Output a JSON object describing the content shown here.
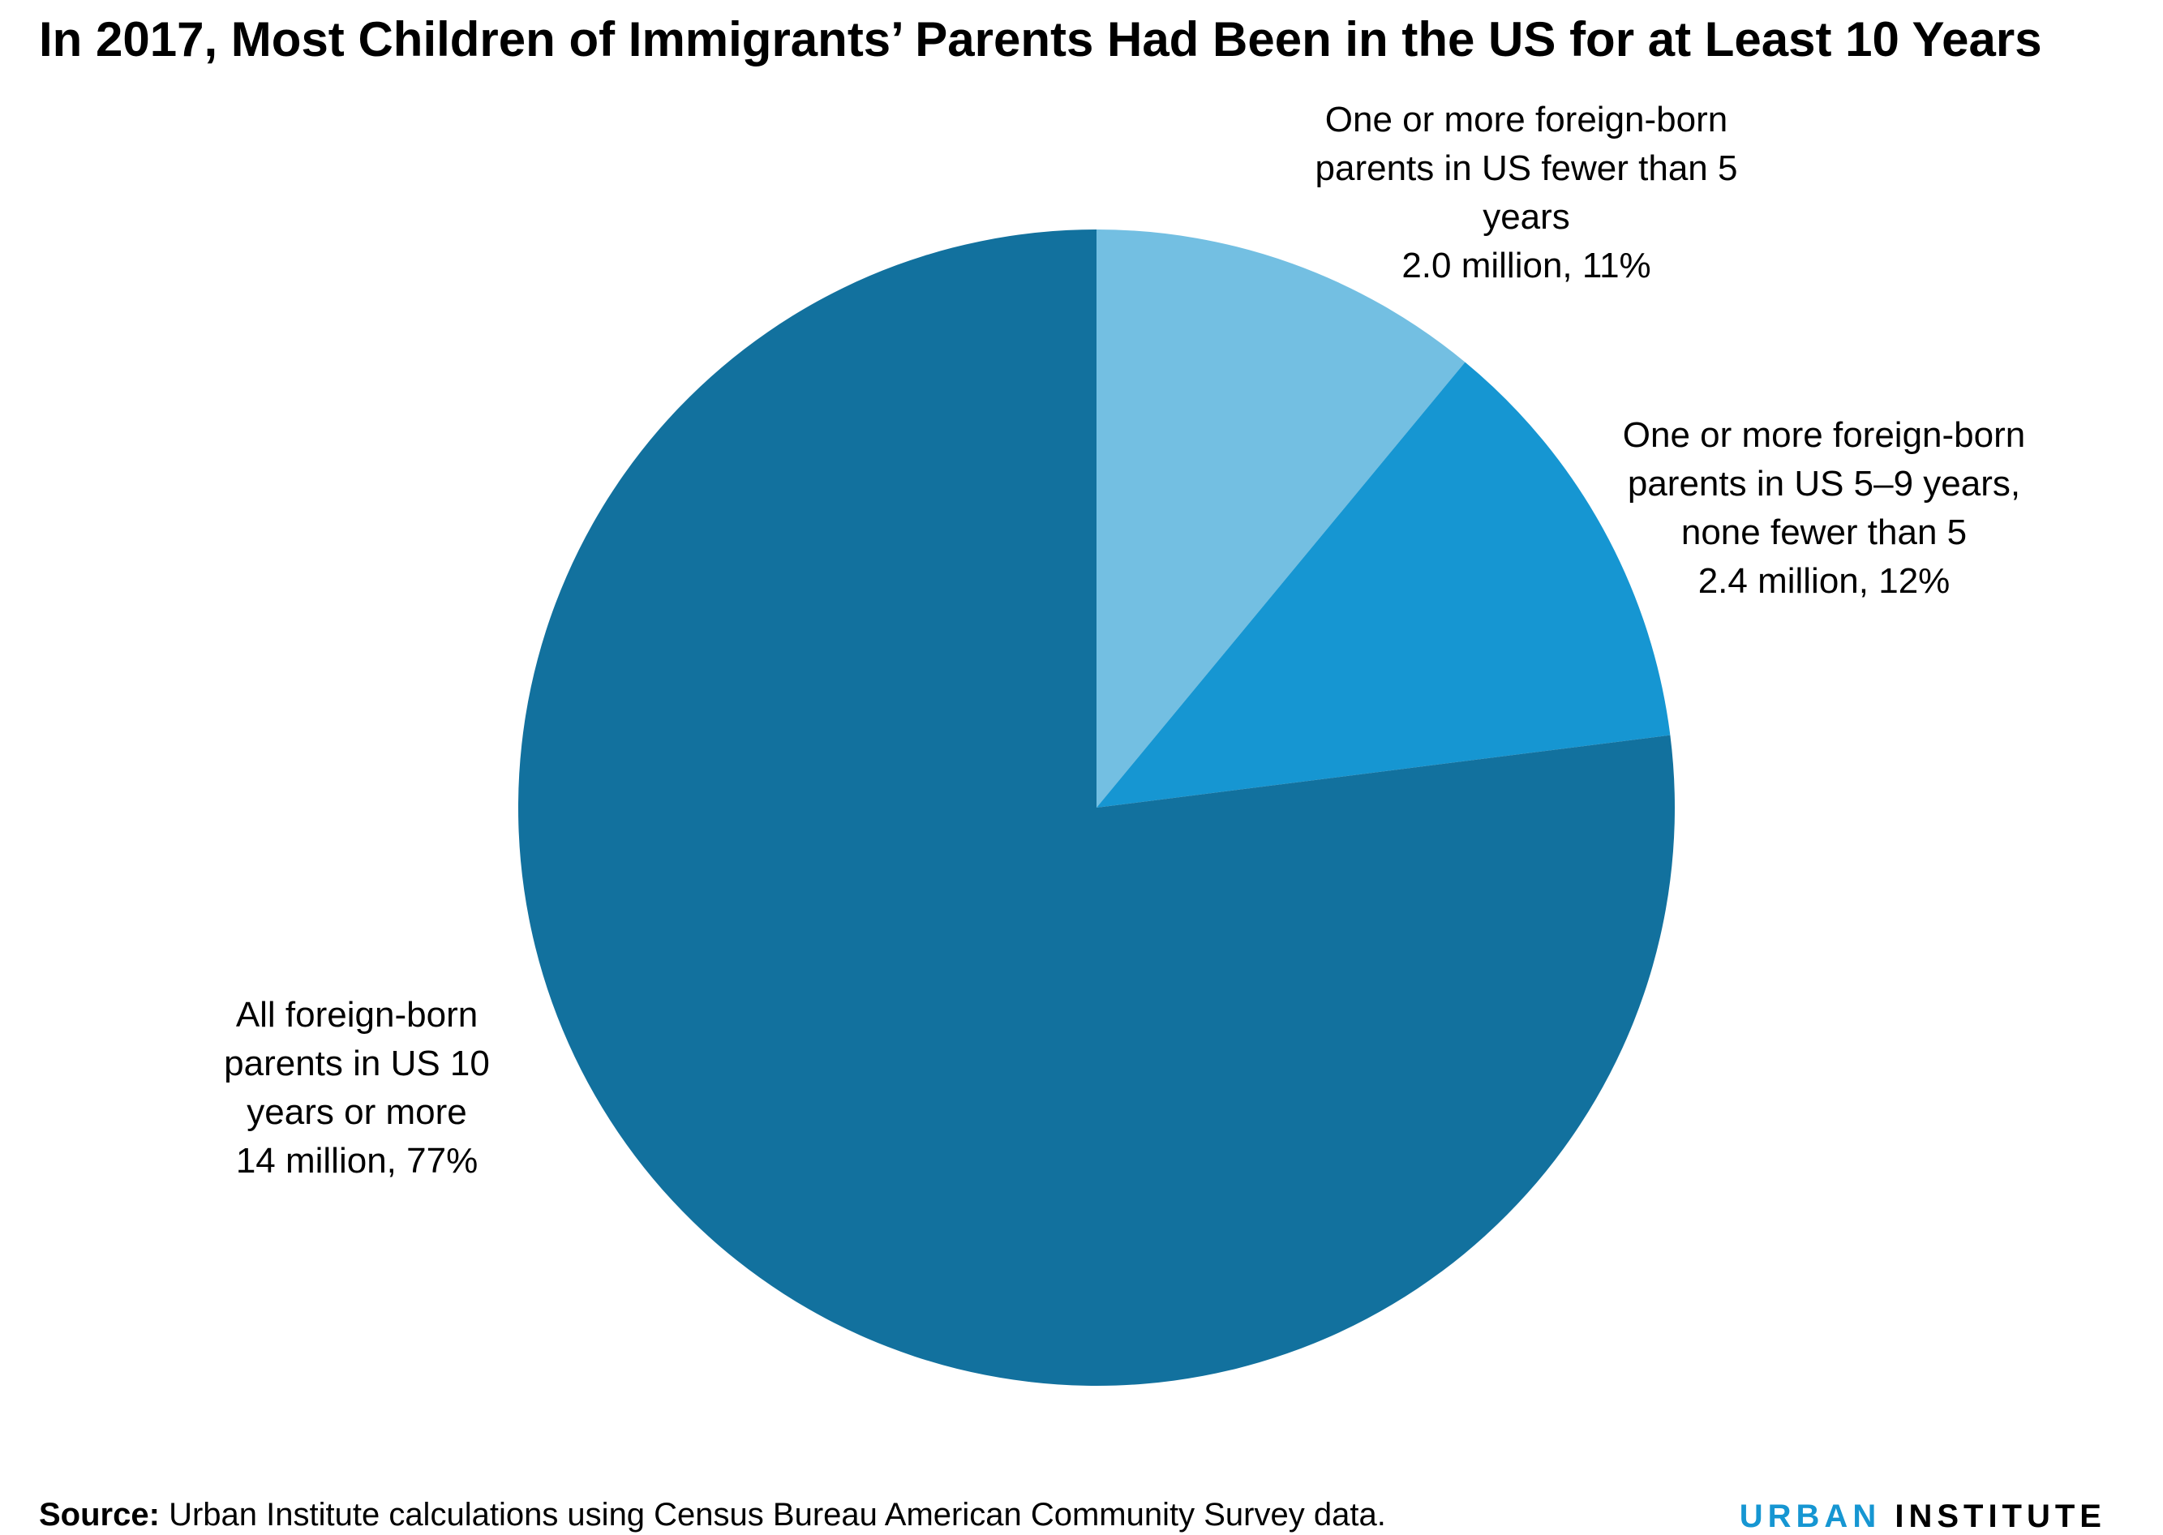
{
  "chart_data": {
    "type": "pie",
    "title": "In 2017, Most Children of Immigrants’ Parents Had Been in the US for at Least 10 Years",
    "categories": [
      "One or more foreign-born parents in US fewer than 5 years",
      "One or more foreign-born parents in US 5–9 years, none fewer than 5",
      "All foreign-born parents in US 10 years or more"
    ],
    "values": [
      11,
      12,
      77
    ],
    "value_labels": [
      "2.0 million, 11%",
      "2.4 million, 12%",
      "14 million, 77%"
    ],
    "colors": [
      "#73bfe2",
      "#1696d2",
      "#12719e"
    ],
    "source_label": "Source:",
    "source": "Urban Institute calculations using Census Bureau American Community Survey data.",
    "logo": [
      "URBAN",
      "INSTITUTE"
    ]
  }
}
